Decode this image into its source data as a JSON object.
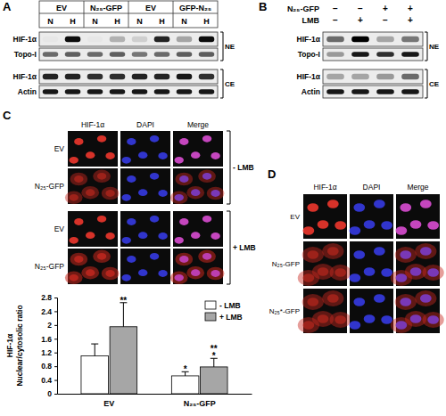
{
  "panels": [
    {
      "label": "A",
      "groups": [
        "EV",
        "N₂₅-GFP",
        "EV",
        "GFP-N₂₅"
      ],
      "lanes": [
        "N",
        "H",
        "N",
        "H",
        "N",
        "H",
        "N",
        "H"
      ],
      "rows": [
        "HIF-1α",
        "Topo-I",
        "HIF-1α",
        "Actin"
      ],
      "fractions": [
        "NE",
        "CE"
      ]
    },
    {
      "label": "B",
      "conditions": [
        {
          "label": "N₂₅-GFP",
          "signs": [
            "−",
            "−",
            "+",
            "+"
          ]
        },
        {
          "label": "LMB",
          "signs": [
            "−",
            "+",
            "−",
            "+"
          ]
        }
      ],
      "rows": [
        "HIF-1α",
        "Topo-I",
        "HIF-1α",
        "Actin"
      ],
      "fractions": [
        "NE",
        "CE"
      ]
    },
    {
      "label": "C",
      "columns": [
        "HIF-1α",
        "DAPI",
        "Merge"
      ],
      "treatments": [
        {
          "label": "- LMB",
          "rows": [
            "EV",
            "N₂₅-GFP"
          ]
        },
        {
          "label": "+ LMB",
          "rows": [
            "EV",
            "N₂₅-GFP"
          ]
        }
      ]
    },
    {
      "label": "D",
      "columns": [
        "HIF-1α",
        "DAPI",
        "Merge"
      ],
      "rows": [
        "EV",
        "N₂₅-GFP",
        "N₂₅*-GFP"
      ]
    }
  ],
  "chart_data": {
    "type": "bar",
    "y_label": [
      "HIF-1α",
      "Nuclear/cytosolic ratio"
    ],
    "categories": [
      "EV",
      "N₂₅-GFP"
    ],
    "series": [
      {
        "name": "- LMB",
        "color": "#ffffff",
        "values": [
          1.1,
          0.52
        ],
        "errors": [
          0.35,
          0.12
        ],
        "significance": [
          [],
          [
            "*"
          ]
        ]
      },
      {
        "name": "+ LMB",
        "color": "#a6a6a6",
        "values": [
          1.95,
          0.78
        ],
        "errors": [
          0.7,
          0.25
        ],
        "significance": [
          [
            "**"
          ],
          [
            "**",
            "*"
          ]
        ]
      }
    ],
    "ylim": [
      0,
      2.8
    ],
    "yticks": [
      0,
      0.4,
      0.8,
      1.2,
      1.6,
      2,
      2.4,
      2.8
    ],
    "legend": "top-right"
  }
}
